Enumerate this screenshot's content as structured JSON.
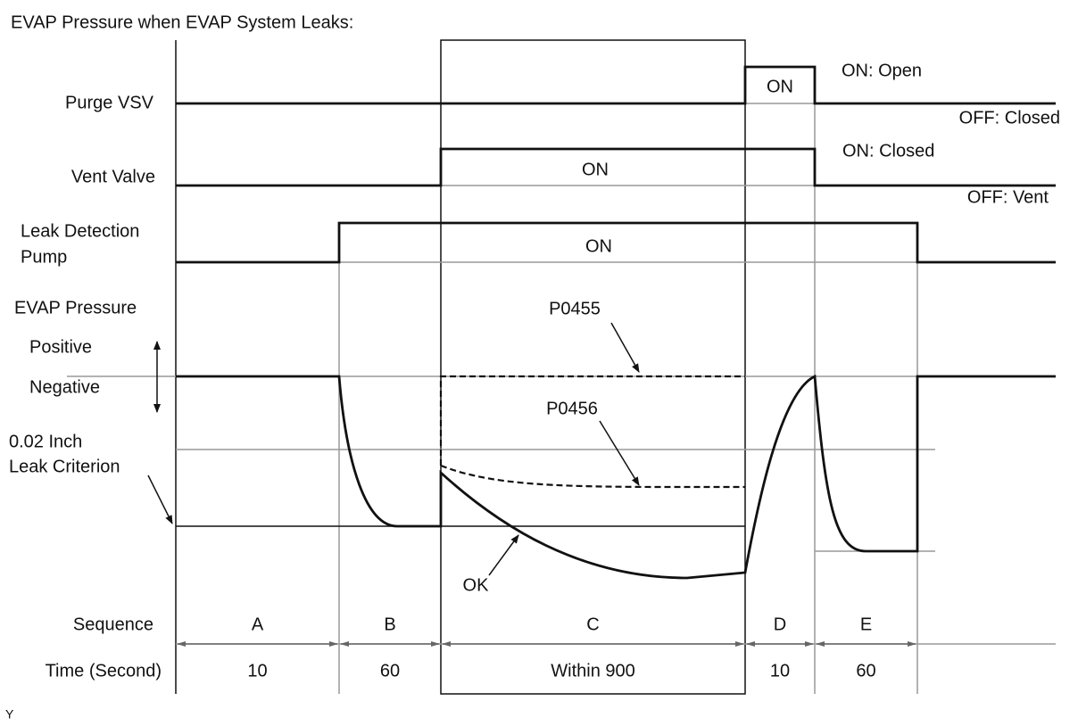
{
  "title": "EVAP Pressure when EVAP System Leaks:",
  "signals": [
    {
      "label": [
        "Purge VSV"
      ],
      "on_label": "ON",
      "state_on": "ON: Open",
      "state_off": "OFF: Closed"
    },
    {
      "label": [
        "Vent Valve"
      ],
      "on_label": "ON",
      "state_on": "ON: Closed",
      "state_off": "OFF: Vent"
    },
    {
      "label": [
        "Leak Detection",
        "Pump"
      ],
      "on_label": "ON"
    }
  ],
  "pressure": {
    "label": "EVAP Pressure",
    "positive": "Positive",
    "negative": "Negative",
    "criterion": [
      "0.02 Inch",
      "Leak Criterion"
    ],
    "codes": [
      "P0455",
      "P0456",
      "OK"
    ]
  },
  "sequence": {
    "label": "Sequence",
    "time_label": "Time (Second)",
    "phases": [
      {
        "name": "A",
        "time": "10"
      },
      {
        "name": "B",
        "time": "60"
      },
      {
        "name": "C",
        "time": "Within 900"
      },
      {
        "name": "D",
        "time": "10"
      },
      {
        "name": "E",
        "time": "60"
      }
    ]
  },
  "footer": "Y"
}
